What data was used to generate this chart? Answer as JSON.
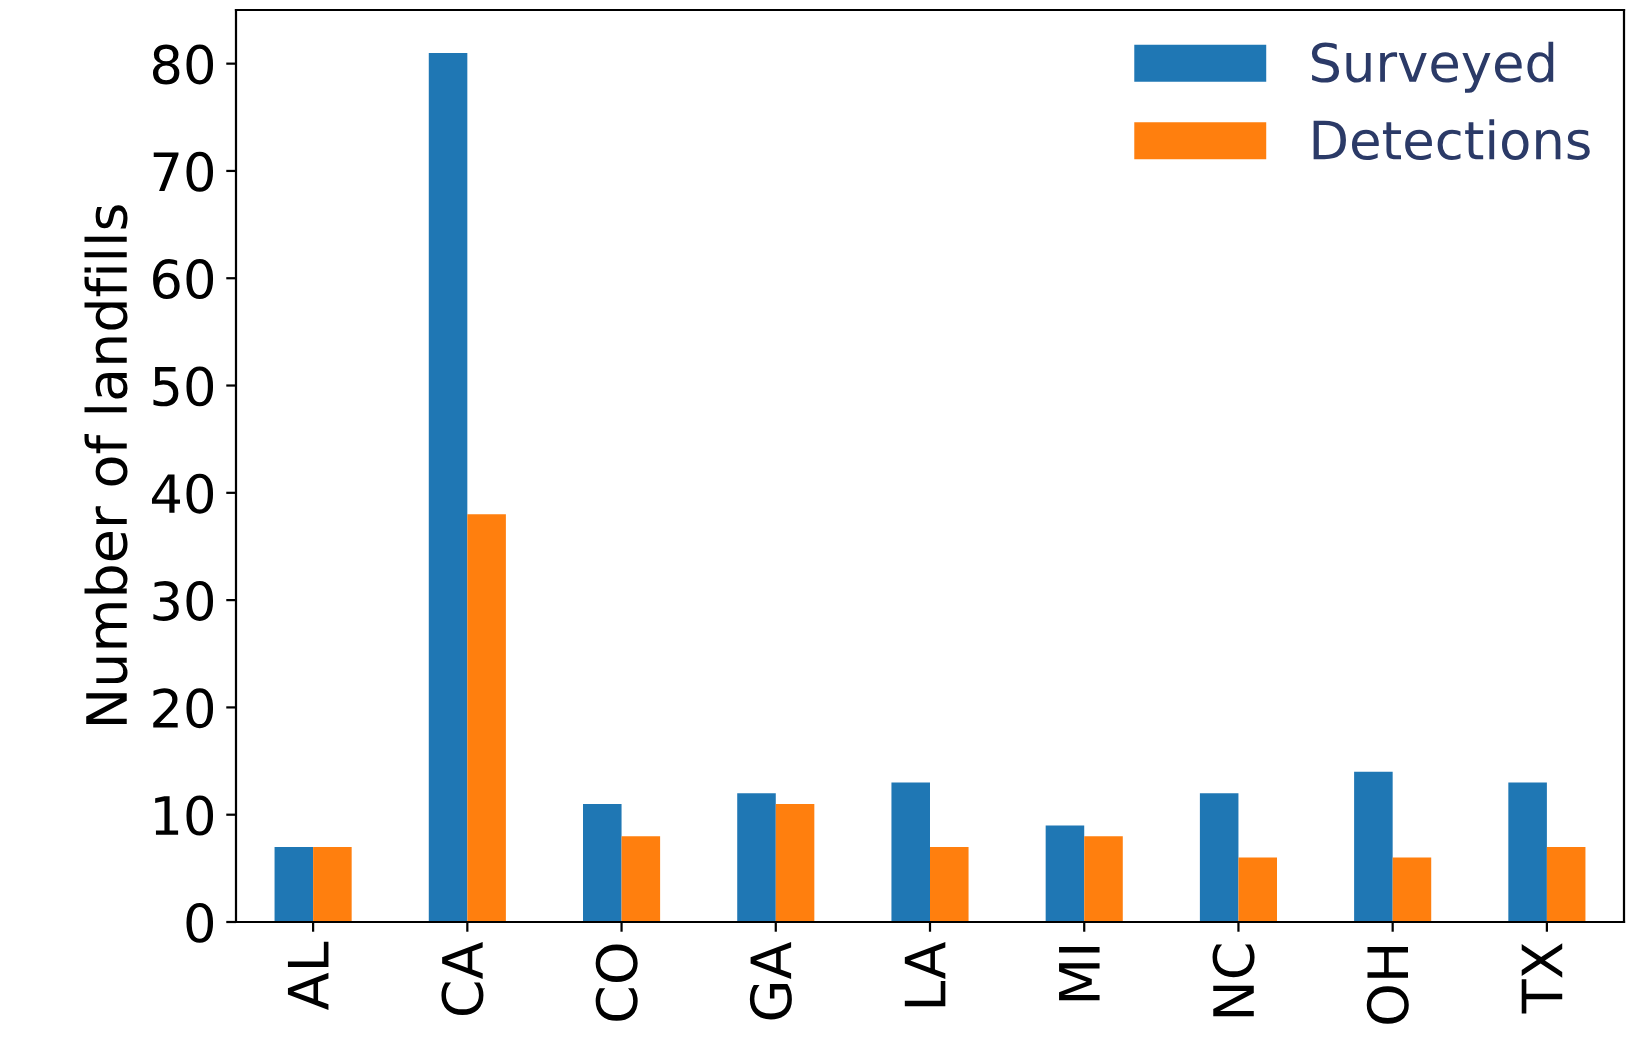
{
  "chart_data": {
    "type": "bar",
    "ylabel": "Number of landfills",
    "categories": [
      "AL",
      "CA",
      "CO",
      "GA",
      "LA",
      "MI",
      "NC",
      "OH",
      "TX"
    ],
    "series": [
      {
        "name": "Surveyed",
        "color": "#1f77b4",
        "values": [
          7,
          81,
          11,
          12,
          13,
          9,
          12,
          14,
          13
        ]
      },
      {
        "name": "Detections",
        "color": "#ff7f0e",
        "values": [
          7,
          38,
          8,
          11,
          7,
          8,
          6,
          6,
          7
        ]
      }
    ],
    "ylim": [
      0,
      85
    ],
    "yticks": [
      0,
      10,
      20,
      30,
      40,
      50,
      60,
      70,
      80
    ],
    "grid": false,
    "legend": "top right"
  }
}
